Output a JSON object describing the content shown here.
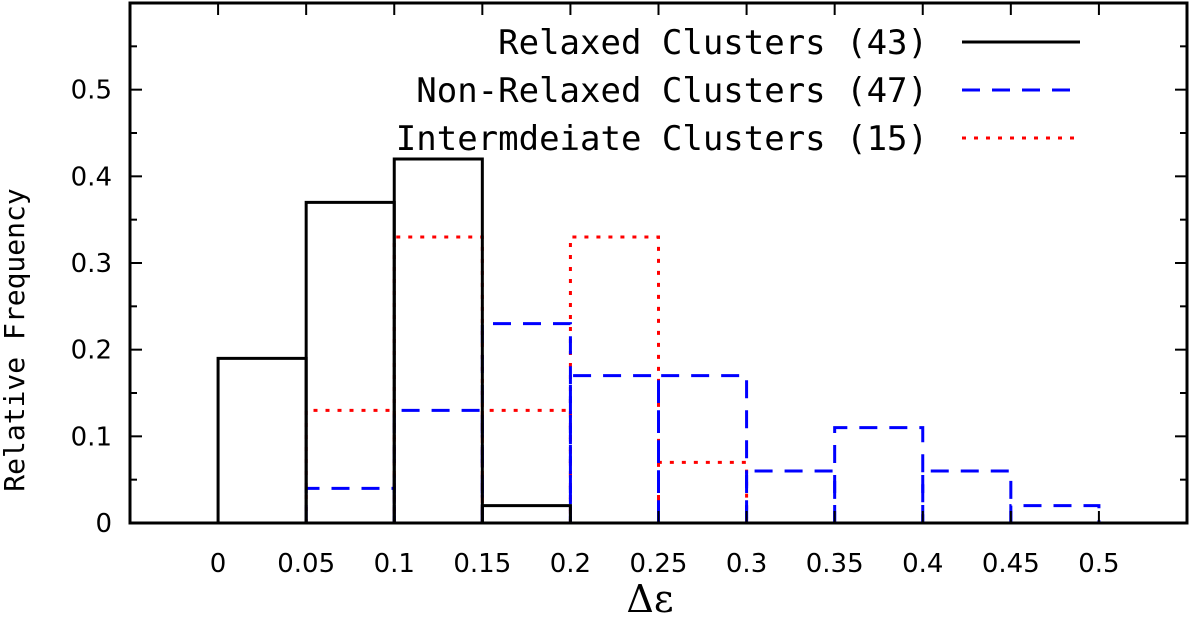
{
  "chart_data": {
    "type": "bar",
    "xlabel": "Δε",
    "ylabel": "Relative Frequency",
    "xlim": [
      -0.05,
      0.55
    ],
    "ylim": [
      0,
      0.6
    ],
    "x_ticks": [
      "0",
      "0.05",
      "0.1",
      "0.15",
      "0.2",
      "0.25",
      "0.3",
      "0.35",
      "0.4",
      "0.45",
      "0.5"
    ],
    "y_ticks": [
      "0",
      "0.1",
      "0.2",
      "0.3",
      "0.4",
      "0.5"
    ],
    "bin_edges": [
      0,
      0.05,
      0.1,
      0.15,
      0.2,
      0.25,
      0.3,
      0.35,
      0.4,
      0.45,
      0.5,
      0.55
    ],
    "legend_position": "top-right",
    "series": [
      {
        "name": "Relaxed Clusters (43)",
        "color": "#000000",
        "style": "solid",
        "values": [
          0.19,
          0.37,
          0.42,
          0.02,
          0,
          0,
          0,
          0,
          0,
          0,
          0
        ]
      },
      {
        "name": "Non-Relaxed Clusters (47)",
        "color": "#0000ff",
        "style": "dashed",
        "values": [
          0,
          0.04,
          0.13,
          0.23,
          0.17,
          0.17,
          0.06,
          0.11,
          0.06,
          0.02,
          0
        ]
      },
      {
        "name": "Intermdeiate Clusters (15)",
        "color": "#ff0000",
        "style": "dotted",
        "values": [
          0,
          0.13,
          0.33,
          0.13,
          0.33,
          0.07,
          0,
          0,
          0,
          0,
          0
        ]
      }
    ]
  }
}
